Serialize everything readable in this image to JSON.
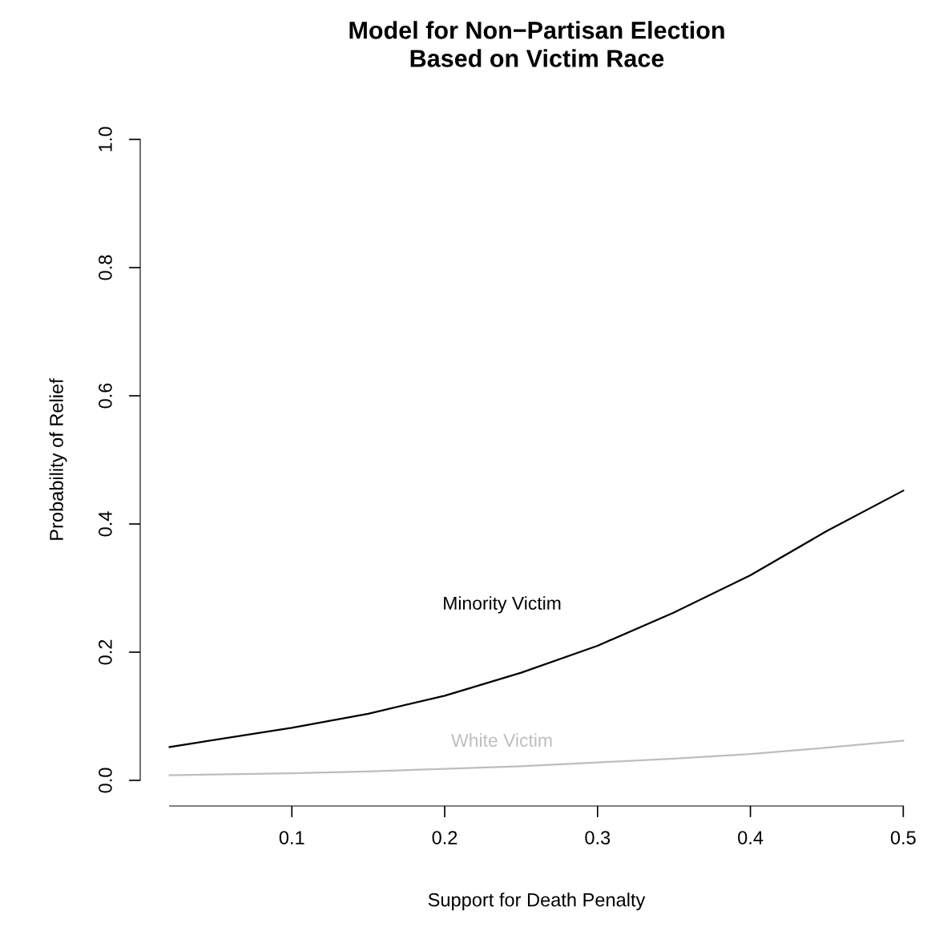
{
  "chart_data": {
    "type": "line",
    "title": "Model for Non−Partisan Election\nBased on Victim Race",
    "xlabel": "Support for Death Penalty",
    "ylabel": "Probability of Relief",
    "x": [
      0.02,
      0.1,
      0.15,
      0.2,
      0.25,
      0.3,
      0.35,
      0.4,
      0.45,
      0.5
    ],
    "series": [
      {
        "color": "#000000",
        "values": [
          0.052,
          0.082,
          0.104,
          0.132,
          0.168,
          0.21,
          0.262,
          0.32,
          0.389,
          0.452
        ]
      },
      {
        "color": "#bebebe",
        "values": [
          0.008,
          0.011,
          0.014,
          0.018,
          0.022,
          0.028,
          0.034,
          0.041,
          0.051,
          0.062
        ]
      }
    ],
    "annotations": [
      "Minority Victim",
      "White Victim"
    ],
    "xlim": [
      0.02,
      0.5
    ],
    "ylim": [
      0,
      1
    ],
    "xticks": [
      0.1,
      0.2,
      0.3,
      0.4,
      0.5
    ],
    "yticks": [
      {
        "value": 0,
        "label": "0.0"
      },
      {
        "value": 0.2,
        "label": "0.2"
      },
      {
        "value": 0.4,
        "label": "0.4"
      },
      {
        "value": 0.6,
        "label": "0.6"
      },
      {
        "value": 0.8,
        "label": "0.8"
      },
      {
        "value": 1,
        "label": "1.0"
      }
    ],
    "grid": false,
    "legend": false,
    "line_style": "solid",
    "marker": "none"
  }
}
